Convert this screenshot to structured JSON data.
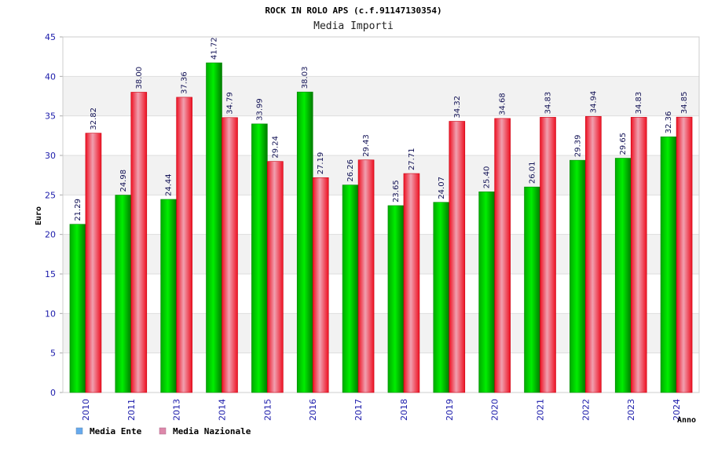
{
  "chart_data": {
    "type": "bar",
    "title": "ROCK IN ROLO APS (c.f.91147130354)",
    "subtitle": "Media Importi",
    "ylabel": "Euro",
    "xlabel": "Anno",
    "ylim": [
      0,
      45
    ],
    "yticks": [
      0,
      5,
      10,
      15,
      20,
      25,
      30,
      35,
      40,
      45
    ],
    "grid": true,
    "legend_position": "bottom-left",
    "categories": [
      "2010",
      "2011",
      "2013",
      "2014",
      "2015",
      "2016",
      "2017",
      "2018",
      "2019",
      "2020",
      "2021",
      "2022",
      "2023",
      "2024"
    ],
    "series": [
      {
        "name": "Media Ente",
        "color": "#00aa00",
        "legend_color": "#66aaee",
        "values": [
          21.29,
          24.98,
          24.44,
          41.72,
          33.99,
          38.03,
          26.26,
          23.65,
          24.07,
          25.4,
          26.01,
          29.39,
          29.65,
          32.36
        ],
        "labels": [
          "21.29",
          "24.98",
          "24.44",
          "41.72",
          "33.99",
          "38.03",
          "26.26",
          "23.65",
          "24.07",
          "25.40",
          "26.01",
          "29.39",
          "29.65",
          "32.36"
        ]
      },
      {
        "name": "Media Nazionale",
        "color": "#ee1122",
        "legend_color": "#dd88aa",
        "values": [
          32.82,
          38.0,
          37.36,
          34.79,
          29.24,
          27.19,
          29.43,
          27.71,
          34.32,
          34.68,
          34.83,
          34.94,
          34.83,
          34.85
        ],
        "labels": [
          "32.82",
          "38.00",
          "37.36",
          "34.79",
          "29.24",
          "27.19",
          "29.43",
          "27.71",
          "34.32",
          "34.68",
          "34.83",
          "34.94",
          "34.83",
          "34.85"
        ]
      }
    ]
  }
}
